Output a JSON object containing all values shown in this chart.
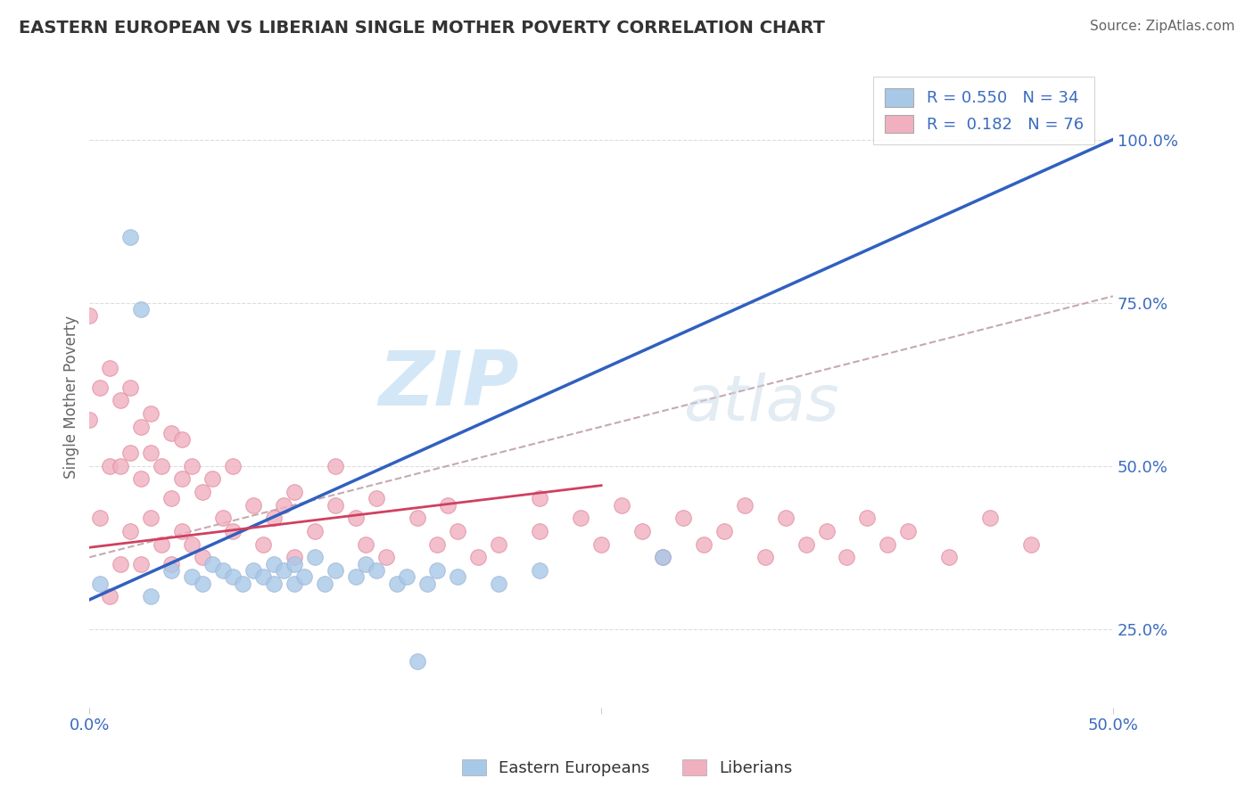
{
  "title": "EASTERN EUROPEAN VS LIBERIAN SINGLE MOTHER POVERTY CORRELATION CHART",
  "source": "Source: ZipAtlas.com",
  "ylabel": "Single Mother Poverty",
  "xlim": [
    0.0,
    0.5
  ],
  "ylim": [
    0.13,
    1.08
  ],
  "xtick_positions": [
    0.0,
    0.25,
    0.5
  ],
  "xtick_labels": [
    "0.0%",
    "",
    "50.0%"
  ],
  "ytick_positions": [
    0.25,
    0.5,
    0.75,
    1.0
  ],
  "ytick_labels": [
    "25.0%",
    "50.0%",
    "75.0%",
    "100.0%"
  ],
  "legend_r1": "R = 0.550   N = 34",
  "legend_r2": "R =  0.182   N = 76",
  "legend_label1": "Eastern Europeans",
  "legend_label2": "Liberians",
  "color_blue": "#a8c8e8",
  "color_blue_edge": "#a0b8d8",
  "color_pink": "#f0b0c0",
  "color_pink_edge": "#e090a0",
  "color_blue_line": "#3060c0",
  "color_pink_line": "#d04060",
  "color_dash": "#c0a0a8",
  "watermark_zip": "ZIP",
  "watermark_atlas": "atlas",
  "blue_scatter_x": [
    0.005,
    0.02,
    0.025,
    0.03,
    0.04,
    0.05,
    0.055,
    0.06,
    0.065,
    0.07,
    0.075,
    0.08,
    0.085,
    0.09,
    0.09,
    0.095,
    0.1,
    0.1,
    0.105,
    0.11,
    0.115,
    0.12,
    0.13,
    0.135,
    0.14,
    0.15,
    0.155,
    0.16,
    0.165,
    0.17,
    0.18,
    0.2,
    0.22,
    0.28
  ],
  "blue_scatter_y": [
    0.32,
    0.85,
    0.74,
    0.3,
    0.34,
    0.33,
    0.32,
    0.35,
    0.34,
    0.33,
    0.32,
    0.34,
    0.33,
    0.32,
    0.35,
    0.34,
    0.32,
    0.35,
    0.33,
    0.36,
    0.32,
    0.34,
    0.33,
    0.35,
    0.34,
    0.32,
    0.33,
    0.2,
    0.32,
    0.34,
    0.33,
    0.32,
    0.34,
    0.36
  ],
  "pink_scatter_x": [
    0.0,
    0.0,
    0.005,
    0.005,
    0.01,
    0.01,
    0.01,
    0.015,
    0.015,
    0.015,
    0.02,
    0.02,
    0.02,
    0.025,
    0.025,
    0.025,
    0.03,
    0.03,
    0.03,
    0.035,
    0.035,
    0.04,
    0.04,
    0.04,
    0.045,
    0.045,
    0.045,
    0.05,
    0.05,
    0.055,
    0.055,
    0.06,
    0.065,
    0.07,
    0.07,
    0.08,
    0.085,
    0.09,
    0.095,
    0.1,
    0.1,
    0.11,
    0.12,
    0.12,
    0.13,
    0.135,
    0.14,
    0.145,
    0.16,
    0.17,
    0.175,
    0.18,
    0.19,
    0.2,
    0.22,
    0.22,
    0.24,
    0.25,
    0.26,
    0.27,
    0.28,
    0.29,
    0.3,
    0.31,
    0.32,
    0.33,
    0.34,
    0.35,
    0.36,
    0.37,
    0.38,
    0.39,
    0.4,
    0.42,
    0.44,
    0.46
  ],
  "pink_scatter_y": [
    0.57,
    0.73,
    0.42,
    0.62,
    0.3,
    0.5,
    0.65,
    0.35,
    0.5,
    0.6,
    0.4,
    0.52,
    0.62,
    0.35,
    0.48,
    0.56,
    0.42,
    0.52,
    0.58,
    0.38,
    0.5,
    0.35,
    0.45,
    0.55,
    0.4,
    0.48,
    0.54,
    0.38,
    0.5,
    0.36,
    0.46,
    0.48,
    0.42,
    0.4,
    0.5,
    0.44,
    0.38,
    0.42,
    0.44,
    0.36,
    0.46,
    0.4,
    0.44,
    0.5,
    0.42,
    0.38,
    0.45,
    0.36,
    0.42,
    0.38,
    0.44,
    0.4,
    0.36,
    0.38,
    0.4,
    0.45,
    0.42,
    0.38,
    0.44,
    0.4,
    0.36,
    0.42,
    0.38,
    0.4,
    0.44,
    0.36,
    0.42,
    0.38,
    0.4,
    0.36,
    0.42,
    0.38,
    0.4,
    0.36,
    0.42,
    0.38
  ],
  "blue_line_x": [
    0.0,
    0.5
  ],
  "blue_line_y": [
    0.295,
    1.0
  ],
  "pink_line_x": [
    0.0,
    0.25
  ],
  "pink_line_y": [
    0.375,
    0.47
  ],
  "dash_line_x": [
    0.0,
    0.5
  ],
  "dash_line_y": [
    0.36,
    0.76
  ]
}
